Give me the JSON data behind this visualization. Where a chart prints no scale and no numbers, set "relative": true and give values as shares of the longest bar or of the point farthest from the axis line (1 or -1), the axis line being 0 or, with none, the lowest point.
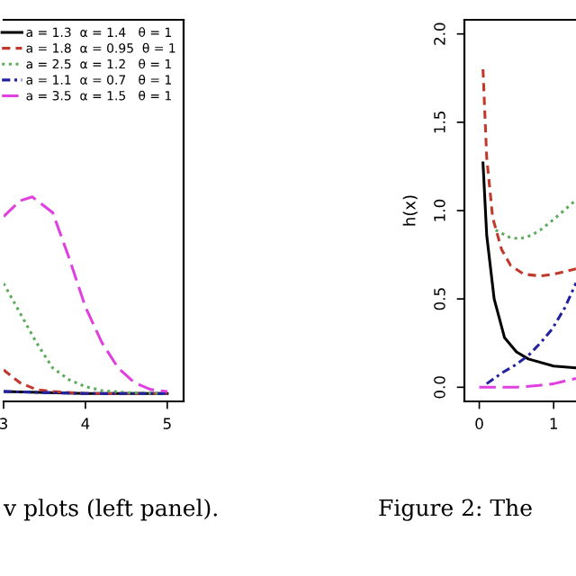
{
  "chart_data": [
    {
      "type": "line",
      "relative": true,
      "xlim": [
        3,
        5.2
      ],
      "xticks": [
        3,
        4,
        5
      ],
      "legend": "top right",
      "grid": false,
      "annotations": [
        "v plots (left panel)."
      ],
      "series": [
        {
          "name": "a = 1.3  α = 1.4   θ = 1",
          "color": "#000000",
          "line_style": "solid",
          "x": [
            3.0,
            4.0,
            5.0
          ],
          "values": [
            0.01,
            0.0,
            0.0
          ]
        },
        {
          "name": "a = 1.8  α = 0.95  θ = 1",
          "color": "#c0392b",
          "line_style": "dashed",
          "x": [
            3.0,
            3.2,
            3.4,
            3.6,
            4.0,
            5.0
          ],
          "values": [
            0.12,
            0.055,
            0.02,
            0.01,
            0.0,
            0.0
          ]
        },
        {
          "name": "a = 2.5  α = 1.2   θ = 1",
          "color": "#5dab5d",
          "line_style": "dotted",
          "x": [
            3.0,
            3.2,
            3.4,
            3.6,
            3.8,
            4.0,
            4.2,
            4.5,
            5.0
          ],
          "values": [
            0.56,
            0.41,
            0.26,
            0.13,
            0.07,
            0.035,
            0.015,
            0.005,
            0.0
          ]
        },
        {
          "name": "a = 1.1  α = 0.7   θ = 1",
          "color": "#2222a0",
          "line_style": "dashdot",
          "x": [
            3.0,
            4.0,
            5.0
          ],
          "values": [
            0.01,
            0.0,
            0.0
          ]
        },
        {
          "name": "a = 3.5  α = 1.5   θ = 1",
          "color": "#e040e0",
          "line_style": "longdash",
          "x": [
            3.0,
            3.2,
            3.35,
            3.6,
            3.8,
            4.0,
            4.2,
            4.4,
            4.6,
            4.8,
            5.0
          ],
          "values": [
            0.9,
            0.98,
            1.0,
            0.92,
            0.69,
            0.44,
            0.26,
            0.13,
            0.055,
            0.02,
            0.01
          ]
        }
      ]
    },
    {
      "type": "line",
      "ylabel": "h(x)",
      "xlim": [
        -0.2,
        1.3
      ],
      "ylim": [
        -0.08,
        2.08
      ],
      "xticks": [
        0,
        1
      ],
      "yticks": [
        {
          "value": 0,
          "label": "0.0"
        },
        0.5,
        {
          "value": 1,
          "label": "1.0"
        },
        1.5,
        {
          "value": 2,
          "label": "2.0"
        }
      ],
      "grid": false,
      "annotations": [
        "Figure 2: The"
      ],
      "series": [
        {
          "color": "#000000",
          "line_style": "solid",
          "x": [
            0.05,
            0.1,
            0.2,
            0.34,
            0.5,
            0.66,
            1.0,
            1.3
          ],
          "values": [
            1.27,
            0.86,
            0.5,
            0.28,
            0.2,
            0.16,
            0.12,
            0.11
          ]
        },
        {
          "color": "#c0392b",
          "line_style": "dashed",
          "x": [
            0.05,
            0.1,
            0.18,
            0.3,
            0.42,
            0.6,
            0.82,
            1.0,
            1.3
          ],
          "values": [
            1.8,
            1.3,
            0.96,
            0.78,
            0.69,
            0.64,
            0.63,
            0.64,
            0.67
          ]
        },
        {
          "color": "#5dab5d",
          "line_style": "dotted",
          "x": [
            0.22,
            0.4,
            0.54,
            0.7,
            0.82,
            1.0,
            1.3
          ],
          "values": [
            0.89,
            0.85,
            0.84,
            0.86,
            0.89,
            0.95,
            1.06
          ]
        },
        {
          "color": "#2222a0",
          "line_style": "dashdot",
          "x": [
            0.1,
            0.3,
            0.5,
            0.66,
            0.82,
            0.98,
            1.15,
            1.3
          ],
          "values": [
            0.02,
            0.08,
            0.13,
            0.18,
            0.25,
            0.33,
            0.45,
            0.59
          ]
        },
        {
          "color": "#e040e0",
          "line_style": "longdash",
          "x": [
            0.0,
            0.5,
            0.8,
            1.0,
            1.3
          ],
          "values": [
            0.0,
            0.0,
            0.01,
            0.02,
            0.05
          ]
        }
      ]
    }
  ]
}
